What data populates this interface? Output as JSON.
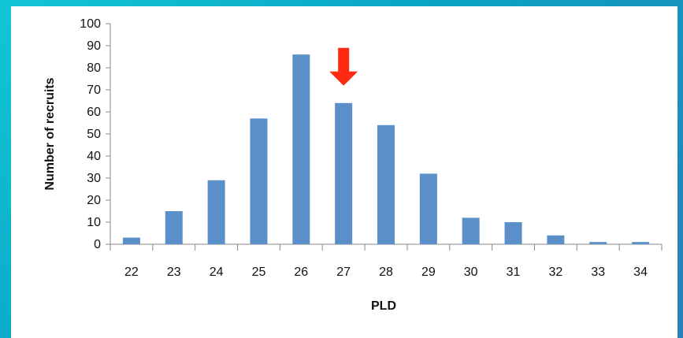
{
  "colors": {
    "bar": "#5b8fc9",
    "arrow": "#ff2a12",
    "axis": "#888888",
    "background_accent": "#12c6d6"
  },
  "chart_data": {
    "type": "bar",
    "categories": [
      "22",
      "23",
      "24",
      "25",
      "26",
      "27",
      "28",
      "29",
      "30",
      "31",
      "32",
      "33",
      "34"
    ],
    "values": [
      3,
      15,
      29,
      57,
      86,
      64,
      54,
      32,
      12,
      10,
      4,
      1,
      1
    ],
    "xlabel": "PLD",
    "ylabel": "Number of recruits",
    "ylim": [
      0,
      100
    ],
    "yticks": [
      "0",
      "10",
      "20",
      "30",
      "40",
      "50",
      "60",
      "70",
      "80",
      "90",
      "100"
    ],
    "grid": false,
    "legend": "none",
    "annotations": [
      {
        "type": "arrow",
        "points_to": "27",
        "direction": "down",
        "color": "#ff2a12"
      }
    ]
  }
}
